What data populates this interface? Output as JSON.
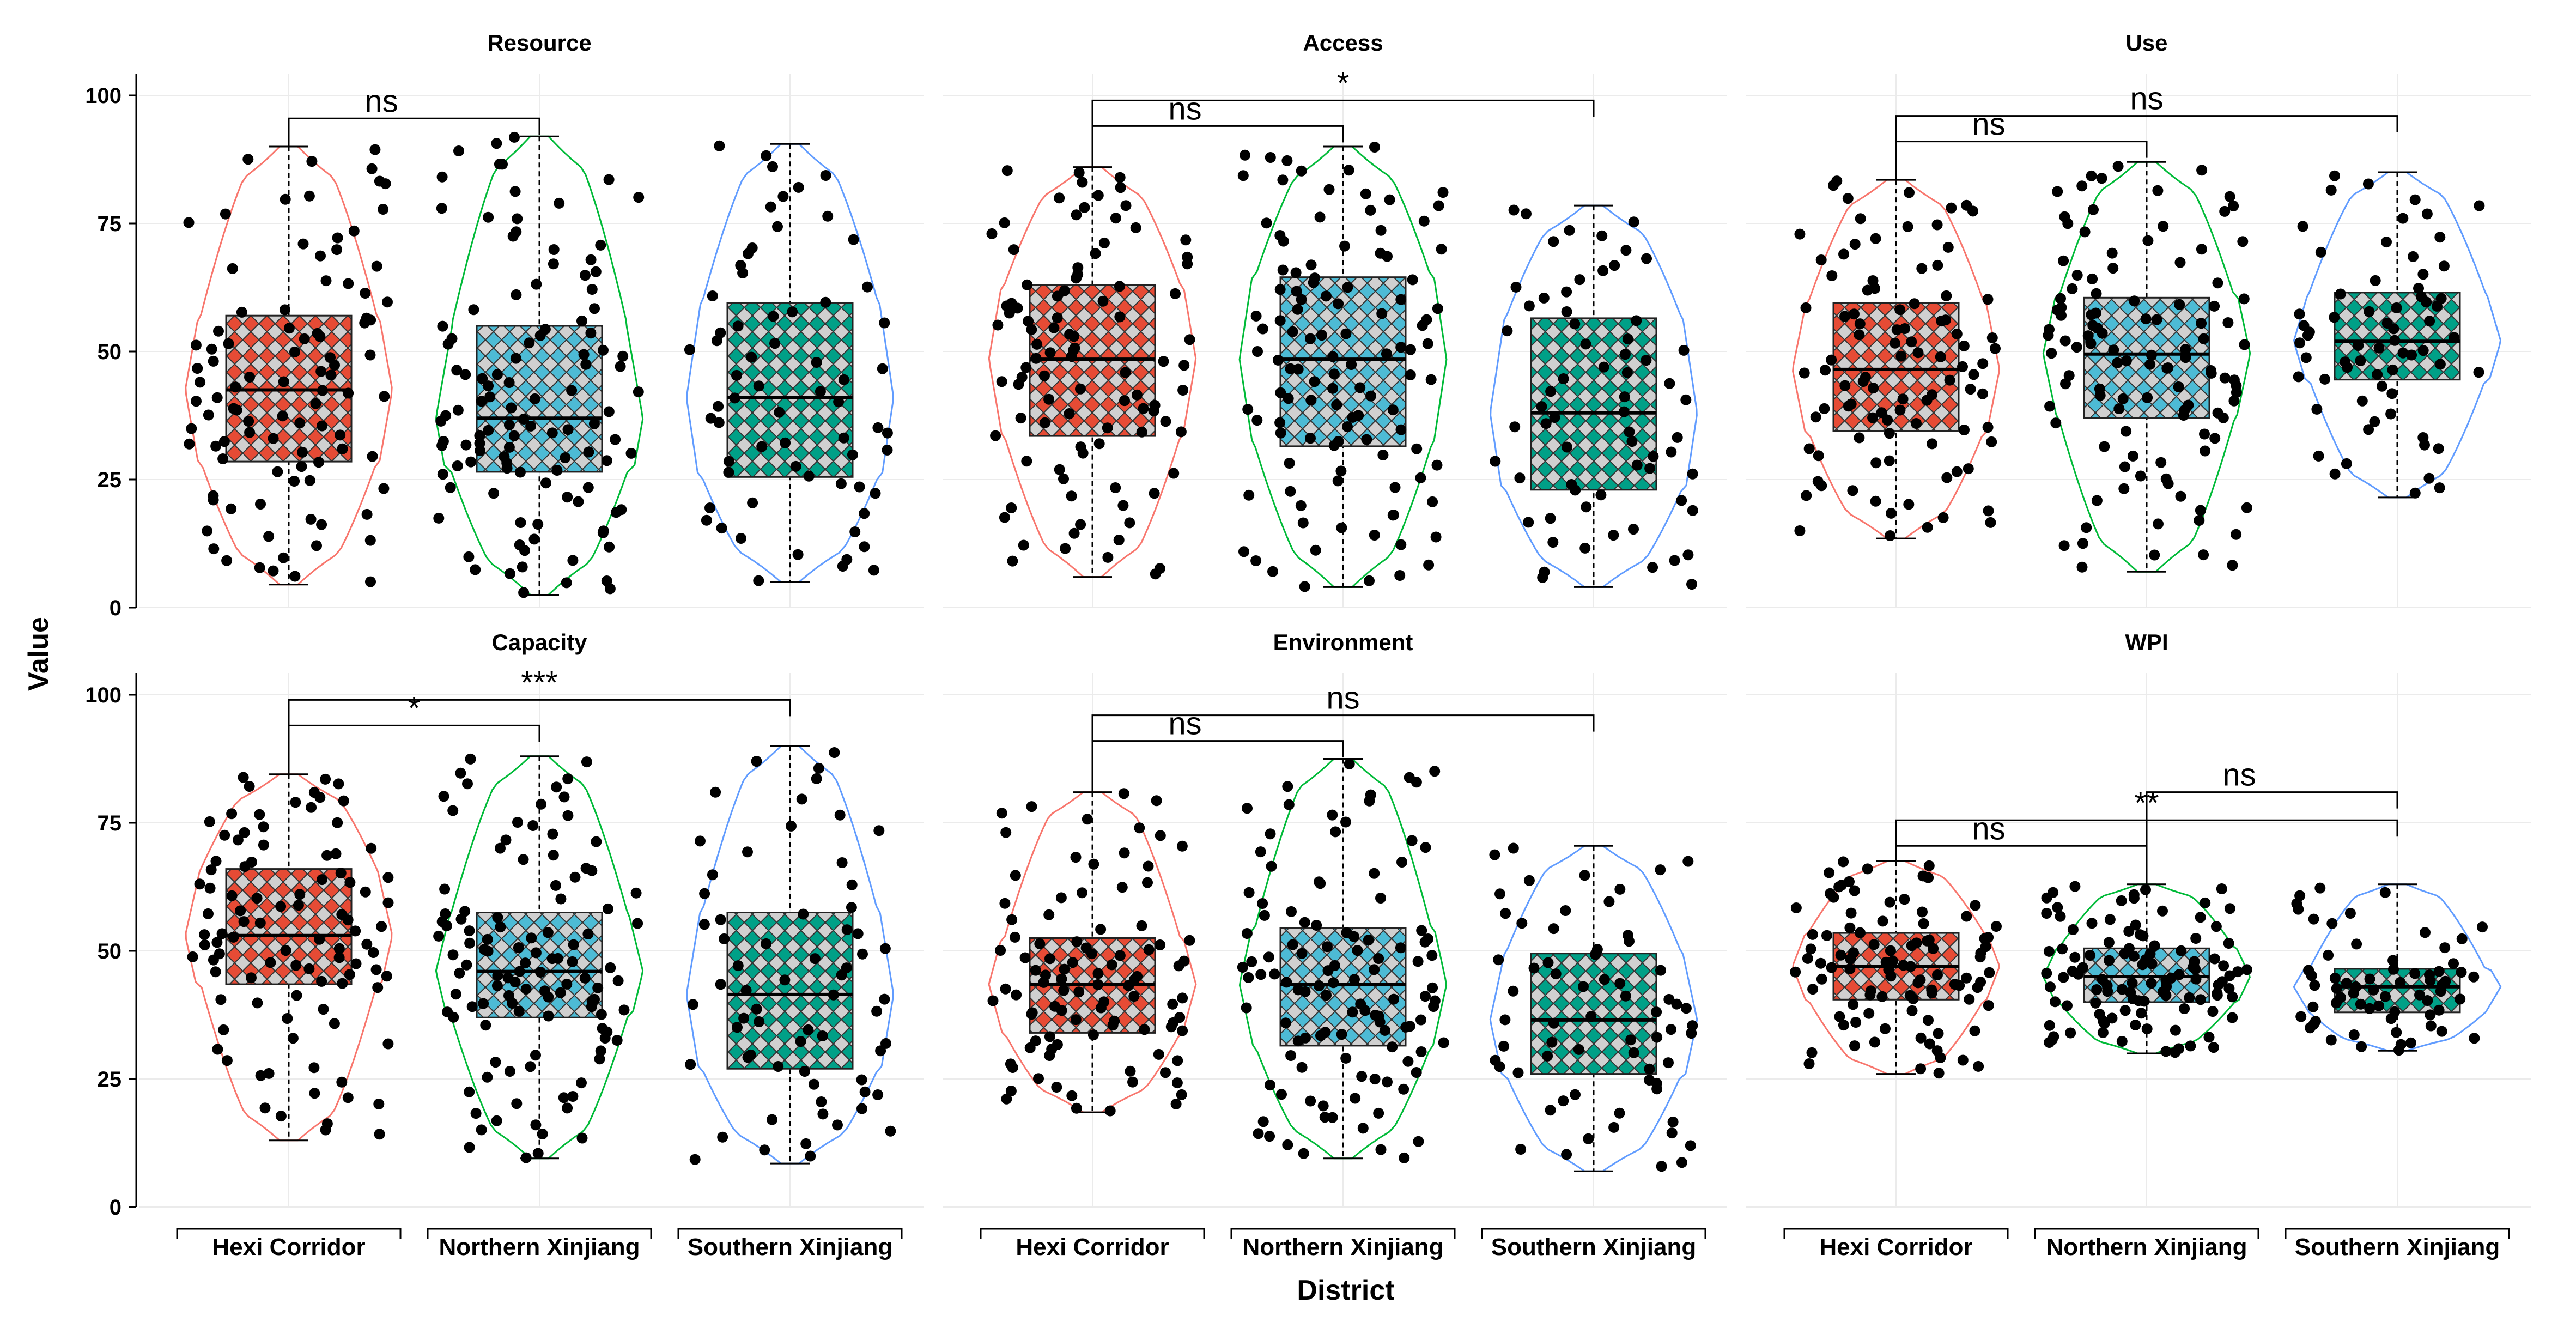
{
  "chart_data": {
    "type": "violin-box-jitter",
    "xlabel": "District",
    "ylabel": "Value",
    "ylim": [
      0,
      100
    ],
    "yticks": [
      0,
      25,
      50,
      75,
      100
    ],
    "grid": true,
    "categories": [
      "Hexi Corridor",
      "Northern Xinjiang",
      "Southern Xinjiang"
    ],
    "colors": {
      "Hexi Corridor": {
        "line": "#F8766D",
        "fill": "#E64B35"
      },
      "Northern Xinjiang": {
        "line": "#00BA38",
        "fill": "#4DBBD5"
      },
      "Southern Xinjiang": {
        "line": "#619CFF",
        "fill": "#00A087"
      }
    },
    "panels": [
      {
        "title": "Resource",
        "groups": [
          {
            "category": "Hexi Corridor",
            "min": 4.5,
            "q1": 28.5,
            "median": 42.5,
            "q3": 57,
            "max": 90,
            "n": 95
          },
          {
            "category": "Northern Xinjiang",
            "min": 2.5,
            "q1": 26.5,
            "median": 37,
            "q3": 55,
            "max": 92,
            "n": 110
          },
          {
            "category": "Southern Xinjiang",
            "min": 5,
            "q1": 25.5,
            "median": 41,
            "q3": 59.5,
            "max": 90.5,
            "n": 65
          }
        ],
        "comparisons": [
          {
            "a": 0,
            "b": 1,
            "y": 95.5,
            "label": "ns"
          }
        ]
      },
      {
        "title": "Access",
        "groups": [
          {
            "category": "Hexi Corridor",
            "min": 6,
            "q1": 33.5,
            "median": 48.5,
            "q3": 63,
            "max": 86,
            "n": 95
          },
          {
            "category": "Northern Xinjiang",
            "min": 4,
            "q1": 31.5,
            "median": 48.5,
            "q3": 64.5,
            "max": 90,
            "n": 110
          },
          {
            "category": "Southern Xinjiang",
            "min": 4,
            "q1": 23,
            "median": 38,
            "q3": 56.5,
            "max": 78.5,
            "n": 65
          }
        ],
        "comparisons": [
          {
            "a": 0,
            "b": 1,
            "y": 94,
            "label": "ns"
          },
          {
            "a": 0,
            "b": 2,
            "y": 99,
            "label": "*"
          }
        ]
      },
      {
        "title": "Use",
        "groups": [
          {
            "category": "Hexi Corridor",
            "min": 13.5,
            "q1": 34.5,
            "median": 46.5,
            "q3": 59.5,
            "max": 83.5,
            "n": 95
          },
          {
            "category": "Northern Xinjiang",
            "min": 7,
            "q1": 37,
            "median": 49.5,
            "q3": 60.5,
            "max": 87,
            "n": 110
          },
          {
            "category": "Southern Xinjiang",
            "min": 21.5,
            "q1": 44.5,
            "median": 52,
            "q3": 61.5,
            "max": 85,
            "n": 65
          }
        ],
        "comparisons": [
          {
            "a": 0,
            "b": 1,
            "y": 91,
            "label": "ns"
          },
          {
            "a": 0,
            "b": 2,
            "y": 96,
            "label": "ns"
          }
        ]
      },
      {
        "title": "Capacity",
        "groups": [
          {
            "category": "Hexi Corridor",
            "min": 13,
            "q1": 43.5,
            "median": 53,
            "q3": 66,
            "max": 84.5,
            "n": 95
          },
          {
            "category": "Northern Xinjiang",
            "min": 9.5,
            "q1": 37,
            "median": 46,
            "q3": 57.5,
            "max": 88,
            "n": 110
          },
          {
            "category": "Southern Xinjiang",
            "min": 8.5,
            "q1": 27,
            "median": 41.5,
            "q3": 57.5,
            "max": 90,
            "n": 65
          }
        ],
        "comparisons": [
          {
            "a": 0,
            "b": 1,
            "y": 94,
            "label": "*"
          },
          {
            "a": 0,
            "b": 2,
            "y": 99,
            "label": "***"
          }
        ]
      },
      {
        "title": "Environment",
        "groups": [
          {
            "category": "Hexi Corridor",
            "min": 18.5,
            "q1": 34,
            "median": 43.5,
            "q3": 52.5,
            "max": 81,
            "n": 95
          },
          {
            "category": "Northern Xinjiang",
            "min": 9.5,
            "q1": 31.5,
            "median": 43.5,
            "q3": 54.5,
            "max": 87.5,
            "n": 110
          },
          {
            "category": "Southern Xinjiang",
            "min": 7,
            "q1": 26,
            "median": 36.5,
            "q3": 49.5,
            "max": 70.5,
            "n": 65
          }
        ],
        "comparisons": [
          {
            "a": 0,
            "b": 1,
            "y": 91,
            "label": "ns"
          },
          {
            "a": 0,
            "b": 2,
            "y": 96,
            "label": "ns"
          }
        ]
      },
      {
        "title": "WPI",
        "groups": [
          {
            "category": "Hexi Corridor",
            "min": 26,
            "q1": 40.5,
            "median": 47,
            "q3": 53.5,
            "max": 67.5,
            "n": 95
          },
          {
            "category": "Northern Xinjiang",
            "min": 30,
            "q1": 40,
            "median": 45,
            "q3": 50.5,
            "max": 63,
            "n": 110
          },
          {
            "category": "Southern Xinjiang",
            "min": 30.5,
            "q1": 38,
            "median": 43,
            "q3": 46.5,
            "max": 63,
            "n": 65
          }
        ],
        "comparisons": [
          {
            "a": 0,
            "b": 1,
            "y": 70.5,
            "label": "ns"
          },
          {
            "a": 0,
            "b": 2,
            "y": 75.5,
            "label": "**"
          },
          {
            "a": 1,
            "b": 2,
            "y": 81,
            "label": "ns"
          }
        ]
      }
    ]
  }
}
